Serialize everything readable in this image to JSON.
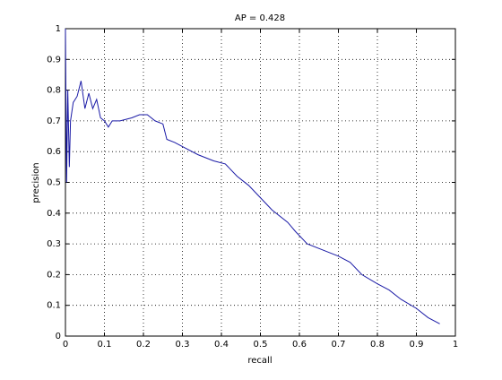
{
  "chart_data": {
    "type": "line",
    "title": "AP = 0.428",
    "x_label": "recall",
    "y_label": "precision",
    "x": [
      0,
      0.003,
      0.006,
      0.01,
      0.013,
      0.02,
      0.03,
      0.04,
      0.05,
      0.06,
      0.07,
      0.08,
      0.09,
      0.1,
      0.11,
      0.12,
      0.14,
      0.17,
      0.19,
      0.21,
      0.23,
      0.25,
      0.26,
      0.28,
      0.31,
      0.34,
      0.38,
      0.41,
      0.44,
      0.47,
      0.5,
      0.53,
      0.57,
      0.59,
      0.62,
      0.66,
      0.7,
      0.73,
      0.76,
      0.8,
      0.83,
      0.86,
      0.9,
      0.93,
      0.96
    ],
    "values": [
      1,
      0.5,
      0.8,
      0.55,
      0.7,
      0.76,
      0.78,
      0.83,
      0.74,
      0.79,
      0.74,
      0.77,
      0.71,
      0.7,
      0.68,
      0.7,
      0.7,
      0.71,
      0.72,
      0.72,
      0.7,
      0.69,
      0.64,
      0.63,
      0.61,
      0.59,
      0.57,
      0.56,
      0.52,
      0.49,
      0.45,
      0.41,
      0.37,
      0.34,
      0.3,
      0.28,
      0.26,
      0.24,
      0.2,
      0.17,
      0.15,
      0.12,
      0.09,
      0.06,
      0.04
    ],
    "color": "#1a1aa6",
    "xlim": [
      0,
      1
    ],
    "ylim": [
      0,
      1
    ],
    "xticks": [
      0,
      0.1,
      0.2,
      0.3,
      0.4,
      0.5,
      0.6,
      0.7,
      0.8,
      0.9,
      1
    ],
    "yticks": [
      0,
      0.1,
      0.2,
      0.3,
      0.4,
      0.5,
      0.6,
      0.7,
      0.8,
      0.9,
      1
    ],
    "grid": true
  }
}
